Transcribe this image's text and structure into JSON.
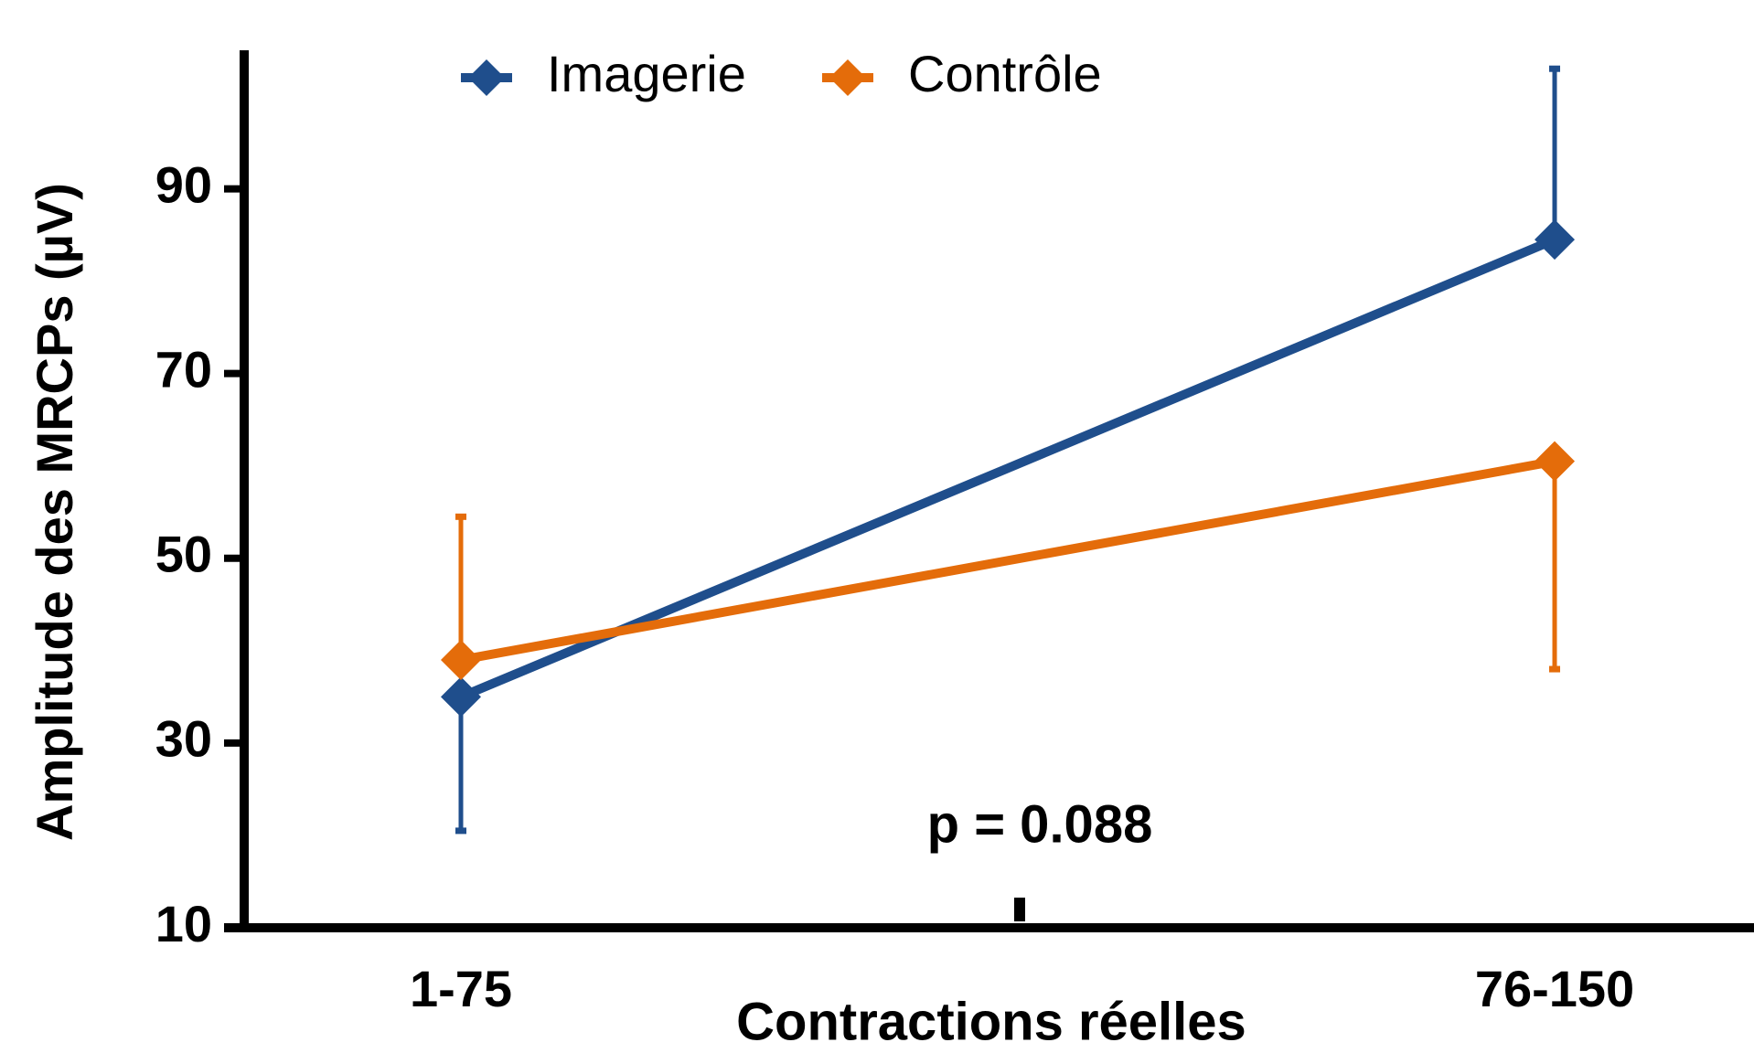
{
  "chart_data": {
    "type": "line",
    "x_label": "Contractions réelles",
    "y_label": "Amplitude des MRCPs (µV)",
    "annotation": "p = 0.088",
    "categories": [
      "1-75",
      "76-150"
    ],
    "series": [
      {
        "name": "Imagerie",
        "color": "#1f4e8c",
        "values": [
          35,
          84.5
        ],
        "errors": [
          14.5,
          18.5
        ],
        "error_side": [
          "down",
          "up"
        ]
      },
      {
        "name": "Contrôle",
        "color": "#e46c0a",
        "values": [
          39,
          60.5
        ],
        "errors": [
          15.5,
          22.5
        ],
        "error_side": [
          "up",
          "down"
        ]
      }
    ],
    "ylim": [
      10,
      105
    ],
    "yticks": [
      10,
      30,
      50,
      70,
      90
    ]
  }
}
